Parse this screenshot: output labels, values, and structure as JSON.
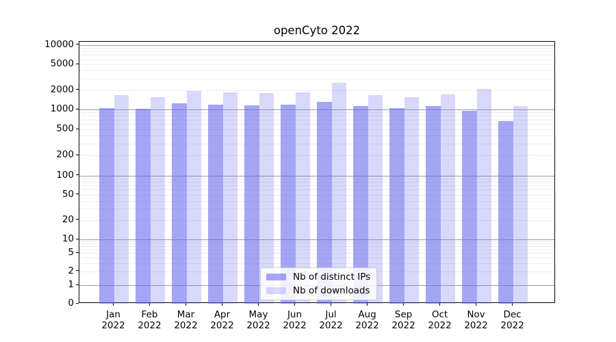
{
  "title": "openCyto 2022",
  "chart_data": {
    "type": "bar",
    "title": "openCyto 2022",
    "categories": [
      "Jan",
      "Feb",
      "Mar",
      "Apr",
      "May",
      "Jun",
      "Jul",
      "Aug",
      "Sep",
      "Oct",
      "Nov",
      "Dec"
    ],
    "year_label": "2022",
    "series": [
      {
        "name": "Nb of distinct IPs",
        "color": "#6464f0",
        "alpha": 0.58,
        "values": [
          1050,
          1030,
          1250,
          1180,
          1160,
          1190,
          1320,
          1130,
          1050,
          1140,
          960,
          660
        ]
      },
      {
        "name": "Nb of downloads",
        "color": "#6464f0",
        "alpha": 0.25,
        "values": [
          1670,
          1570,
          1920,
          1830,
          1780,
          1860,
          2570,
          1680,
          1570,
          1720,
          2100,
          1120
        ]
      }
    ],
    "yscale": "symlog",
    "ylim": [
      0,
      10000
    ],
    "y_ticks": [
      0,
      1,
      2,
      5,
      10,
      20,
      50,
      100,
      200,
      500,
      1000,
      2000,
      5000,
      10000
    ],
    "grid": true,
    "legend_position": "lower center",
    "xlabel": "",
    "ylabel": ""
  },
  "legend": {
    "items": [
      {
        "label": "Nb of distinct IPs"
      },
      {
        "label": "Nb of downloads"
      }
    ]
  },
  "colors": {
    "bar_base": "#6464f0",
    "grid_major": "#9b9b9b",
    "grid_minor": "#ececec",
    "axis": "#000000",
    "legend_border": "#cccccc"
  }
}
